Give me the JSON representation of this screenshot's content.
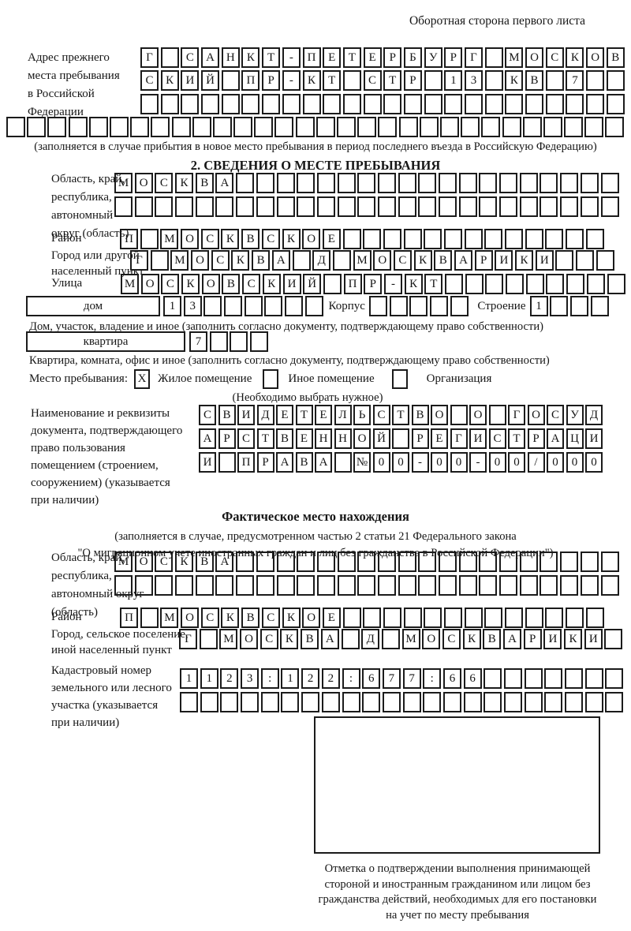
{
  "page": {
    "side_note": "Оборотная сторона первого листа",
    "ink_color": "#1b1b1b",
    "paper_color": "#ffffff"
  },
  "prev_address": {
    "label_lines": [
      "Адрес прежнего",
      "места пребывания",
      "в Российской",
      "Федерации"
    ],
    "rows": [
      {
        "text": "Г САНКТ-ПЕТЕРБУРГ МОСКОВ",
        "count": 24
      },
      {
        "text": "СКИЙ ПР-КТ СТР 13 КВ 7",
        "count": 24
      },
      {
        "text": "",
        "count": 24
      }
    ],
    "overflow_row": {
      "text": "",
      "count": 30
    },
    "note": "(заполняется в случае прибытия в новое место пребывания в период последнего въезда в Российскую Федерацию)"
  },
  "section2": {
    "title": "2. СВЕДЕНИЯ О МЕСТЕ ПРЕБЫВАНИЯ",
    "region": {
      "label_lines": [
        "Область, край,",
        "республика,",
        "автономный",
        "округ (область)"
      ],
      "rows": [
        {
          "text": "МОСКВА",
          "count": 25
        },
        {
          "text": "",
          "count": 25
        }
      ]
    },
    "district": {
      "label": "Район",
      "row": {
        "text": "П МОСКВСКОЕ",
        "count": 24
      }
    },
    "city": {
      "label_lines": [
        "Город или другой",
        "населенный пункт"
      ],
      "row": {
        "text": "Г МОСКВА Д МОСКВАРИКИ",
        "count": 24
      }
    },
    "street": {
      "label": "Улица",
      "row": {
        "text": "МОСКОВСКИЙ ПР-КТ",
        "count": 25
      }
    },
    "house": {
      "box_label": "дом",
      "row": {
        "text": "13",
        "count": 8
      },
      "korpus_label": "Корпус",
      "korpus_row": {
        "text": "",
        "count": 5
      },
      "stroenie_label": "Строение",
      "stroenie_row": {
        "text": "1",
        "count": 4
      },
      "note": "Дом, участок, владение и иное (заполнить согласно документу, подтверждающему право собственности)"
    },
    "apartment": {
      "box_label": "квартира",
      "row": {
        "text": "7",
        "count": 4
      },
      "note": "Квартира, комната, офис и иное (заполнить согласно документу, подтверждающему право собственности)"
    },
    "stay": {
      "label": "Место пребывания:",
      "options": [
        {
          "label": "Жилое помещение",
          "mark": "X"
        },
        {
          "label": "Иное помещение",
          "mark": ""
        },
        {
          "label": "Организация",
          "mark": ""
        }
      ],
      "note": "(Необходимо выбрать нужное)"
    },
    "doc": {
      "label_lines": [
        "Наименование и реквизиты",
        "документа, подтверждающего",
        "право пользования",
        "помещением (строением,",
        "сооружением) (указывается",
        "при наличии)"
      ],
      "rows": [
        {
          "text": "СВИДЕТЕЛЬСТВО О ГОСУД",
          "count": 21
        },
        {
          "text": "АРСТВЕННОЙ РЕГИСТРАЦИ",
          "count": 21
        },
        {
          "text": "И ПРАВА №00-00-00/000",
          "count": 21
        }
      ]
    }
  },
  "section3": {
    "title": "Фактическое место нахождения",
    "subtitle_lines": [
      "(заполняется в случае, предусмотренном частью 2 статьи 21 Федерального закона",
      "\"О миграционном учете иностранных граждан и лиц без гражданства в Российской Федерации\")"
    ],
    "region": {
      "label_lines": [
        "Область, край,",
        "республика,",
        "автономный округ",
        "(область)"
      ],
      "rows": [
        {
          "text": "МОСКВА",
          "count": 25
        },
        {
          "text": "",
          "count": 25
        }
      ]
    },
    "district": {
      "label": "Район",
      "row": {
        "text": "П МОСКВСКОЕ",
        "count": 24
      }
    },
    "city": {
      "label_lines": [
        "Город, сельское поселение,",
        "иной населенный пункт"
      ],
      "row": {
        "text": "Г МОСКВА Д МОСКВАРИКИ",
        "count": 22
      }
    },
    "cadastre": {
      "label_lines": [
        "Кадастровый номер",
        "земельного или лесного",
        "участка (указывается",
        "при наличии)"
      ],
      "rows": [
        {
          "text": "1123:122:677:66",
          "count": 22
        },
        {
          "text": "",
          "count": 22
        }
      ]
    },
    "stamp_caption_lines": [
      "Отметка о подтверждении выполнения принимающей",
      "стороной и иностранным гражданином или лицом без",
      "гражданства действий, необходимых для его постановки",
      "на учет по месту пребывания"
    ]
  }
}
